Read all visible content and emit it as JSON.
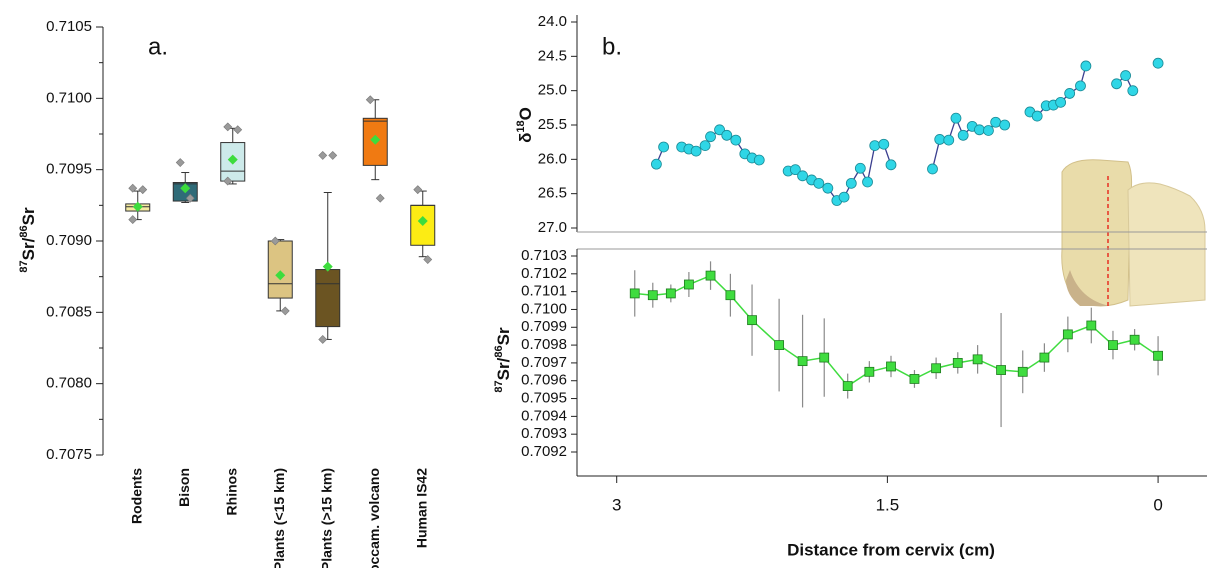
{
  "chart_data": [
    {
      "type": "box",
      "annotation": "a.",
      "ylabel": [
        {
          "text": "87",
          "sup": true
        },
        {
          "text": "Sr/"
        },
        {
          "text": "86",
          "sup": true
        },
        {
          "text": "Sr"
        }
      ],
      "categories": [
        "Rodents",
        "Bison",
        "Rhinos",
        "Plants (<15 km)",
        "Plants (>15 km)",
        "Roccam. volcano",
        "Human IS42"
      ],
      "boxes": [
        {
          "color": "#f3eaa0",
          "whislo": 0.70915,
          "q1": 0.70921,
          "med": 0.70924,
          "q3": 0.70926,
          "whishi": 0.70935,
          "mean": 0.70924,
          "points": [
            0.70937,
            0.70936,
            0.70915
          ]
        },
        {
          "color": "#2f6b78",
          "whislo": 0.70927,
          "q1": 0.70928,
          "med": 0.7094,
          "q3": 0.70941,
          "whishi": 0.70948,
          "mean": 0.70937,
          "points": [
            0.70955,
            0.7093
          ]
        },
        {
          "color": "#cdeaea",
          "whislo": 0.7094,
          "q1": 0.70942,
          "med": 0.70949,
          "q3": 0.70969,
          "whishi": 0.70979,
          "mean": 0.70957,
          "points": [
            0.7098,
            0.70978,
            0.70942
          ]
        },
        {
          "color": "#dcc482",
          "whislo": 0.70851,
          "q1": 0.7086,
          "med": 0.7087,
          "q3": 0.709,
          "whishi": 0.70901,
          "mean": 0.70876,
          "points": [
            0.709,
            0.70851
          ]
        },
        {
          "color": "#6b5422",
          "whislo": 0.70831,
          "q1": 0.7084,
          "med": 0.7087,
          "q3": 0.7088,
          "whishi": 0.70934,
          "mean": 0.70882,
          "points": [
            0.7096,
            0.7096,
            0.70831
          ]
        },
        {
          "color": "#f07a12",
          "whislo": 0.70943,
          "q1": 0.70953,
          "med": 0.70984,
          "q3": 0.70986,
          "whishi": 0.70999,
          "mean": 0.70971,
          "points": [
            0.70999,
            0.7093
          ]
        },
        {
          "color": "#fcec14",
          "whislo": 0.70889,
          "q1": 0.70897,
          "med": 0.70925,
          "q3": 0.70925,
          "whishi": 0.70935,
          "mean": 0.70914,
          "points": [
            0.70936,
            0.70887
          ]
        }
      ],
      "mean_color": "#3ddc3d",
      "point_color": "#9a9a9a",
      "ylim": [
        0.7075,
        0.7105
      ],
      "yticks": [
        0.7075,
        {
          "value": 0.708,
          "label": "0.7080"
        },
        0.7085,
        {
          "value": 0.709,
          "label": "0.7090"
        },
        0.7095,
        {
          "value": 0.71,
          "label": "0.7100"
        },
        0.7105
      ]
    },
    {
      "type": "line",
      "annotation": "b.",
      "ylabel": [
        {
          "text": "δ"
        },
        {
          "text": "18",
          "sup": true
        },
        {
          "text": "O"
        }
      ],
      "x": [
        2.78,
        2.74,
        2.69,
        2.64,
        2.6,
        2.56,
        2.51,
        2.48,
        2.43,
        2.39,
        2.34,
        2.29,
        2.25,
        2.21,
        2.13,
        2.05,
        2.01,
        1.97,
        1.92,
        1.88,
        1.83,
        1.78,
        1.74,
        1.7,
        1.65,
        1.61,
        1.57,
        1.52,
        1.48,
        1.36,
        1.25,
        1.21,
        1.16,
        1.12,
        1.08,
        1.03,
        0.99,
        0.94,
        0.9,
        0.85,
        0.78,
        0.71,
        0.67,
        0.62,
        0.58,
        0.54,
        0.49,
        0.43,
        0.4,
        0.31,
        0.23,
        0.18,
        0.14,
        0.07,
        0.0
      ],
      "values": [
        26.07,
        25.82,
        null,
        25.82,
        25.85,
        25.88,
        25.8,
        25.67,
        25.57,
        25.65,
        25.72,
        25.92,
        25.98,
        26.01,
        null,
        26.17,
        26.15,
        26.24,
        26.3,
        26.35,
        26.42,
        26.6,
        26.55,
        26.35,
        26.13,
        26.33,
        25.8,
        25.78,
        26.08,
        null,
        26.14,
        25.71,
        25.72,
        25.4,
        25.65,
        25.52,
        25.57,
        25.58,
        25.46,
        25.5,
        null,
        25.31,
        25.37,
        25.22,
        25.21,
        25.17,
        25.04,
        24.93,
        24.64,
        null,
        24.9,
        24.78,
        25.0,
        null,
        24.6
      ],
      "color": "#2fd6e6",
      "line_color": "#3b3f8f",
      "y_inverted": true,
      "xlim": [
        3.22,
        -0.26
      ],
      "ylim": [
        24,
        27
      ],
      "yticks": [
        {
          "value": 24,
          "label": "24.0"
        },
        24.5,
        {
          "value": 25,
          "label": "25.0"
        },
        25.5,
        {
          "value": 26,
          "label": "26.0"
        },
        26.5,
        {
          "value": 27,
          "label": "27.0"
        }
      ]
    },
    {
      "type": "errorbar",
      "ylabel": [
        {
          "text": "87",
          "sup": true
        },
        {
          "text": "Sr/"
        },
        {
          "text": "86",
          "sup": true
        },
        {
          "text": "Sr"
        }
      ],
      "xlabel": "Distance from cervix (cm)",
      "x": [
        2.9,
        2.8,
        2.7,
        2.6,
        2.48,
        2.37,
        2.25,
        2.1,
        1.97,
        1.85,
        1.72,
        1.6,
        1.48,
        1.35,
        1.23,
        1.11,
        1.0,
        0.87,
        0.75,
        0.63,
        0.5,
        0.37,
        0.25,
        0.13,
        0.0
      ],
      "values": [
        0.71009,
        0.71008,
        0.71009,
        0.71014,
        0.71019,
        0.71008,
        0.70994,
        0.7098,
        0.70971,
        0.70973,
        0.70957,
        0.70965,
        0.70968,
        0.70961,
        0.70967,
        0.7097,
        0.70972,
        0.70966,
        0.70965,
        0.70973,
        0.70986,
        0.70991,
        0.7098,
        0.70983,
        0.70974
      ],
      "errors": [
        0.00013,
        7e-05,
        5e-05,
        7e-05,
        8e-05,
        0.00012,
        0.0002,
        0.00026,
        0.00026,
        0.00022,
        7e-05,
        6e-05,
        6e-05,
        5e-05,
        6e-05,
        6e-05,
        8e-05,
        0.00032,
        0.00012,
        8e-05,
        0.0001,
        0.0001,
        8e-05,
        6e-05,
        0.00011
      ],
      "color": "#3fdc3f",
      "error_color": "#8a8a8a",
      "xlim": [
        3.22,
        -0.26
      ],
      "xticks": [
        3,
        1.5,
        0
      ],
      "ylim": [
        0.7092,
        0.7103
      ],
      "yticks": [
        0.7092,
        0.7093,
        0.7094,
        0.7095,
        0.7096,
        0.7097,
        0.7098,
        0.7099,
        {
          "value": 0.71,
          "label": "0.7100"
        },
        0.7101,
        0.7102,
        0.7103
      ]
    }
  ]
}
